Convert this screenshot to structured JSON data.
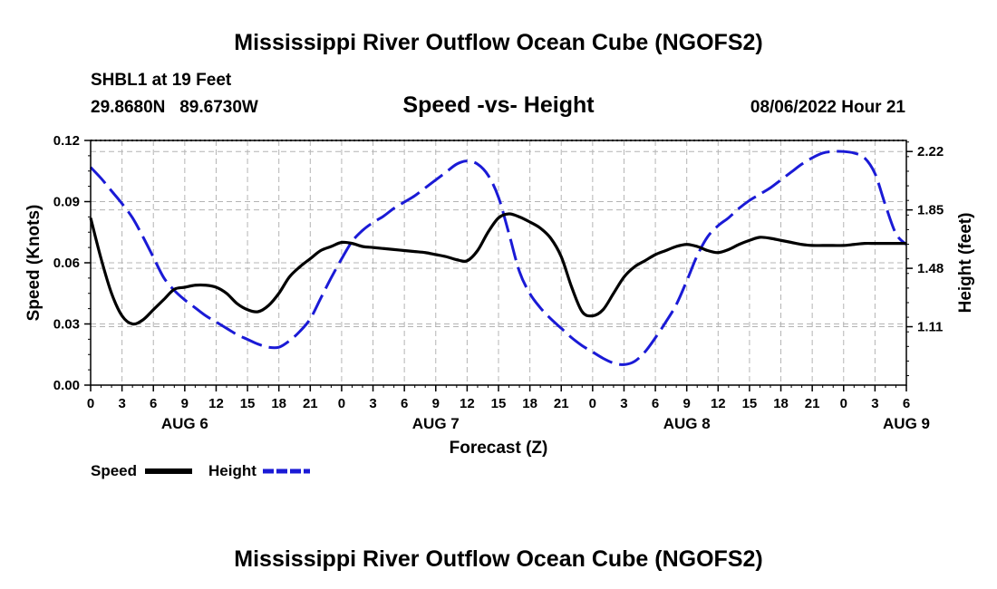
{
  "chart_data": {
    "type": "line",
    "title": "Mississippi River Outflow Ocean Cube (NGOFS2)",
    "footer_title": "Mississippi River Outflow Ocean Cube (NGOFS2)",
    "station": "SHBL1 at 19 Feet",
    "location": "29.8680N   89.6730W",
    "subtitle": "Speed -vs- Height",
    "timestamp": "08/06/2022 Hour 21",
    "xlabel": "Forecast (Z)",
    "ylabel_left": "Speed (Knots)",
    "ylabel_right": "Height (feet)",
    "x_ticks": [
      "0",
      "3",
      "6",
      "9",
      "12",
      "15",
      "18",
      "21",
      "0",
      "3",
      "6",
      "9",
      "12",
      "15",
      "18",
      "21",
      "0",
      "3",
      "6",
      "9",
      "12",
      "15",
      "18",
      "21",
      "0",
      "3",
      "6"
    ],
    "date_labels": [
      {
        "label": "AUG 6",
        "hour": 9
      },
      {
        "label": "AUG 7",
        "hour": 33
      },
      {
        "label": "AUG 8",
        "hour": 57
      },
      {
        "label": "AUG 9",
        "hour": 78
      }
    ],
    "xlim": [
      0,
      78
    ],
    "ylim_left": [
      0,
      0.12
    ],
    "yticks_left": [
      "0.00",
      "0.03",
      "0.06",
      "0.09",
      "0.12"
    ],
    "ylim_right": [
      0.74,
      2.29
    ],
    "yticks_right": [
      "1.11",
      "1.48",
      "1.85",
      "2.22"
    ],
    "grid": true,
    "series": [
      {
        "name": "Speed",
        "axis": "left",
        "color": "#000000",
        "style": "solid",
        "x": [
          0,
          1,
          2,
          3,
          4,
          5,
          6,
          7,
          8,
          9,
          10,
          11,
          12,
          13,
          14,
          15,
          16,
          17,
          18,
          19,
          20,
          21,
          22,
          23,
          24,
          25,
          26,
          27,
          28,
          29,
          30,
          31,
          32,
          33,
          34,
          35,
          36,
          37,
          38,
          39,
          40,
          41,
          42,
          43,
          44,
          45,
          46,
          47,
          48,
          49,
          50,
          51,
          52,
          53,
          54,
          55,
          56,
          57,
          58,
          59,
          60,
          61,
          62,
          63,
          64,
          65,
          66,
          67,
          68,
          69,
          70,
          71,
          72,
          73,
          74,
          75,
          76,
          77,
          78
        ],
        "values": [
          0.082,
          0.062,
          0.045,
          0.034,
          0.03,
          0.032,
          0.037,
          0.042,
          0.047,
          0.048,
          0.049,
          0.049,
          0.048,
          0.045,
          0.04,
          0.037,
          0.036,
          0.039,
          0.045,
          0.053,
          0.058,
          0.062,
          0.066,
          0.068,
          0.07,
          0.0695,
          0.068,
          0.0675,
          0.067,
          0.0665,
          0.066,
          0.0655,
          0.065,
          0.064,
          0.063,
          0.0615,
          0.061,
          0.066,
          0.075,
          0.082,
          0.084,
          0.0825,
          0.08,
          0.077,
          0.072,
          0.063,
          0.048,
          0.036,
          0.034,
          0.037,
          0.045,
          0.053,
          0.058,
          0.061,
          0.064,
          0.066,
          0.068,
          0.069,
          0.068,
          0.066,
          0.065,
          0.0665,
          0.069,
          0.071,
          0.0725,
          0.072,
          0.071,
          0.07,
          0.069,
          0.0685,
          0.0685,
          0.0685,
          0.0685,
          0.069,
          0.0695,
          0.0695,
          0.0695,
          0.0695,
          0.0695
        ]
      },
      {
        "name": "Height",
        "axis": "right",
        "color": "#1a1ad6",
        "style": "dashed",
        "x": [
          0,
          1,
          2,
          3,
          4,
          5,
          6,
          7,
          8,
          9,
          10,
          11,
          12,
          13,
          14,
          15,
          16,
          17,
          18,
          19,
          20,
          21,
          22,
          23,
          24,
          25,
          26,
          27,
          28,
          29,
          30,
          31,
          32,
          33,
          34,
          35,
          36,
          37,
          38,
          39,
          40,
          41,
          42,
          43,
          44,
          45,
          46,
          47,
          48,
          49,
          50,
          51,
          52,
          53,
          54,
          55,
          56,
          57,
          58,
          59,
          60,
          61,
          62,
          63,
          64,
          65,
          66,
          67,
          68,
          69,
          70,
          71,
          72,
          73,
          74,
          75,
          76,
          77,
          78
        ],
        "values": [
          2.12,
          2.05,
          1.97,
          1.89,
          1.8,
          1.68,
          1.55,
          1.42,
          1.34,
          1.28,
          1.23,
          1.18,
          1.14,
          1.1,
          1.06,
          1.03,
          1.0,
          0.98,
          0.98,
          1.02,
          1.08,
          1.16,
          1.29,
          1.42,
          1.54,
          1.65,
          1.72,
          1.77,
          1.81,
          1.86,
          1.9,
          1.94,
          1.99,
          2.04,
          2.09,
          2.14,
          2.16,
          2.14,
          2.07,
          1.93,
          1.7,
          1.46,
          1.32,
          1.23,
          1.16,
          1.1,
          1.04,
          0.99,
          0.95,
          0.91,
          0.88,
          0.87,
          0.89,
          0.95,
          1.04,
          1.14,
          1.25,
          1.4,
          1.56,
          1.68,
          1.75,
          1.8,
          1.86,
          1.91,
          1.95,
          1.99,
          2.04,
          2.09,
          2.14,
          2.18,
          2.21,
          2.22,
          2.22,
          2.21,
          2.18,
          2.08,
          1.88,
          1.7,
          1.63
        ]
      }
    ],
    "legend": [
      {
        "label": "Speed",
        "color": "#000000",
        "style": "solid"
      },
      {
        "label": "Height",
        "color": "#1a1ad6",
        "style": "dashed"
      }
    ]
  }
}
